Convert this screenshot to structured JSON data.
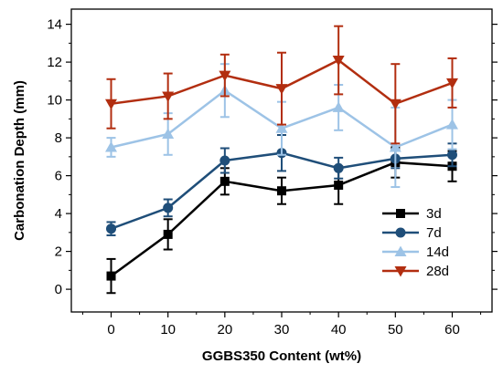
{
  "chart_data": {
    "type": "line",
    "xlabel": "GGBS350 Content (wt%)",
    "ylabel": "Carbonation Depth (mm)",
    "x": [
      0,
      10,
      20,
      30,
      40,
      50,
      60
    ],
    "x_ticks": [
      0,
      10,
      20,
      30,
      40,
      50,
      60
    ],
    "xlim": [
      -7,
      67
    ],
    "y_ticks": [
      0,
      2,
      4,
      6,
      8,
      10,
      12,
      14
    ],
    "ylim": [
      -1.2,
      14.8
    ],
    "grid": false,
    "legend_position": "lower-right",
    "series": [
      {
        "name": "3d",
        "color": "#000000",
        "marker": "square",
        "values": [
          0.7,
          2.9,
          5.7,
          5.2,
          5.5,
          6.7,
          6.5
        ],
        "errors": [
          0.9,
          0.8,
          0.7,
          0.7,
          1.0,
          0.8,
          0.8
        ]
      },
      {
        "name": "7d",
        "color": "#1f4e79",
        "marker": "circle",
        "values": [
          3.2,
          4.3,
          6.8,
          7.2,
          6.4,
          6.9,
          7.1
        ],
        "errors": [
          0.35,
          0.45,
          0.65,
          0.95,
          0.55,
          0.5,
          0.6
        ]
      },
      {
        "name": "14d",
        "color": "#9dc3e6",
        "marker": "triangle-up",
        "values": [
          7.5,
          8.2,
          10.5,
          8.5,
          9.6,
          7.5,
          8.7
        ],
        "errors": [
          0.5,
          1.1,
          1.4,
          1.4,
          1.2,
          2.1,
          1.3
        ]
      },
      {
        "name": "28d",
        "color": "#b22e10",
        "marker": "triangle-down",
        "values": [
          9.8,
          10.2,
          11.3,
          10.6,
          12.1,
          9.8,
          10.9
        ],
        "errors": [
          1.3,
          1.2,
          1.1,
          1.9,
          1.8,
          2.1,
          1.3
        ]
      }
    ]
  }
}
